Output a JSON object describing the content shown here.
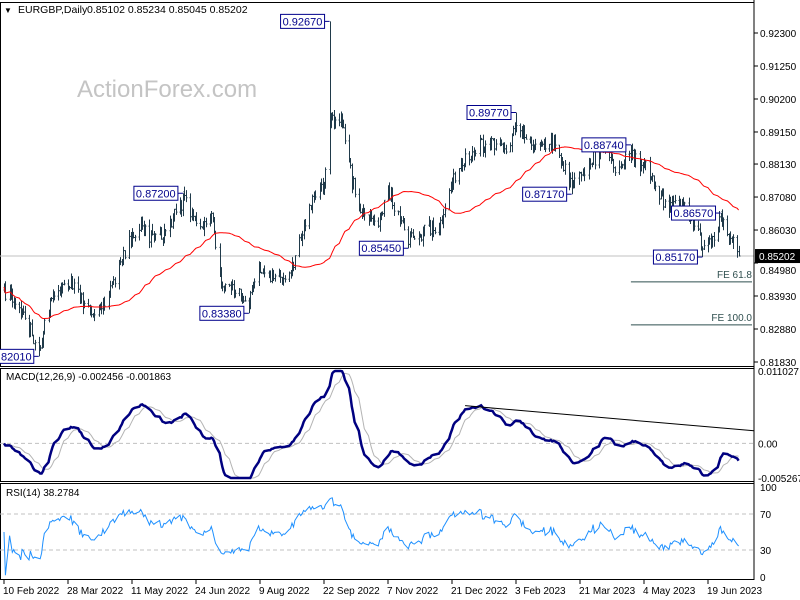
{
  "header": {
    "arrow": "▼",
    "symbol": "EURGBP,Daily",
    "ohlc": "0.85102 0.85234 0.85045 0.85202"
  },
  "watermark": "ActionForex.com",
  "colors": {
    "bars": "#203a4a",
    "moving_average": "#ff0000",
    "annotation": "#00008b",
    "macd": "#000080",
    "signal": "#b4b4b4",
    "rsi": "#1e90ff",
    "level_line": "#c0c0c0",
    "fe_line": "#2f4f4f"
  },
  "x_ticks": [
    {
      "label": "10 Feb 2022",
      "date": "2022-02-10"
    },
    {
      "label": "28 Mar 2022",
      "date": "2022-03-28"
    },
    {
      "label": "11 May 2022",
      "date": "2022-05-11"
    },
    {
      "label": "24 Jun 2022",
      "date": "2022-06-24"
    },
    {
      "label": "9 Aug 2022",
      "date": "2022-08-09"
    },
    {
      "label": "22 Sep 2022",
      "date": "2022-09-22"
    },
    {
      "label": "7 Nov 2022",
      "date": "2022-11-07"
    },
    {
      "label": "21 Dec 2022",
      "date": "2022-12-21"
    },
    {
      "label": "3 Feb 2023",
      "date": "2023-02-03"
    },
    {
      "label": "21 Mar 2023",
      "date": "2023-03-21"
    },
    {
      "label": "4 May 2023",
      "date": "2023-05-04"
    },
    {
      "label": "19 Jun 2023",
      "date": "2023-06-19"
    }
  ],
  "chart_data": [
    {
      "type": "ohlc",
      "title": "EURGBP,Daily",
      "ylim": [
        0.8183,
        0.923
      ],
      "y_ticks": [
        "0.92300",
        "0.91250",
        "0.90200",
        "0.89150",
        "0.88130",
        "0.87080",
        "0.86030",
        "0.84980",
        "0.83930",
        "0.82880",
        "0.81830"
      ],
      "current_price": "0.85202",
      "approx_closes": [
        [
          "2022-02-10",
          0.8412
        ],
        [
          "2022-02-22",
          0.8348
        ],
        [
          "2022-03-07",
          0.8225
        ],
        [
          "2022-03-15",
          0.838
        ],
        [
          "2022-03-29",
          0.8444
        ],
        [
          "2022-04-13",
          0.8332
        ],
        [
          "2022-04-27",
          0.8412
        ],
        [
          "2022-05-09",
          0.8571
        ],
        [
          "2022-05-16",
          0.8619
        ],
        [
          "2022-05-26",
          0.8571
        ],
        [
          "2022-06-06",
          0.8619
        ],
        [
          "2022-06-15",
          0.87
        ],
        [
          "2022-06-27",
          0.8603
        ],
        [
          "2022-07-05",
          0.8667
        ],
        [
          "2022-07-12",
          0.8444
        ],
        [
          "2022-08-01",
          0.8365
        ],
        [
          "2022-08-08",
          0.8476
        ],
        [
          "2022-08-17",
          0.846
        ],
        [
          "2022-08-29",
          0.8444
        ],
        [
          "2022-09-07",
          0.8603
        ],
        [
          "2022-09-15",
          0.8699
        ],
        [
          "2022-09-22",
          0.8762
        ],
        [
          "2022-09-26",
          0.895
        ],
        [
          "2022-10-05",
          0.8953
        ],
        [
          "2022-10-12",
          0.8762
        ],
        [
          "2022-10-19",
          0.8667
        ],
        [
          "2022-10-31",
          0.8635
        ],
        [
          "2022-11-07",
          0.873
        ],
        [
          "2022-11-21",
          0.8565
        ],
        [
          "2022-12-05",
          0.8603
        ],
        [
          "2022-12-15",
          0.864
        ],
        [
          "2022-12-21",
          0.8762
        ],
        [
          "2023-01-03",
          0.8858
        ],
        [
          "2023-01-17",
          0.8889
        ],
        [
          "2023-01-27",
          0.8858
        ],
        [
          "2023-02-03",
          0.894
        ],
        [
          "2023-02-10",
          0.888
        ],
        [
          "2023-02-17",
          0.8874
        ],
        [
          "2023-03-03",
          0.8874
        ],
        [
          "2023-03-15",
          0.874
        ],
        [
          "2023-03-24",
          0.8794
        ],
        [
          "2023-04-04",
          0.8858
        ],
        [
          "2023-04-14",
          0.881
        ],
        [
          "2023-04-25",
          0.885
        ],
        [
          "2023-05-09",
          0.8778
        ],
        [
          "2023-05-19",
          0.8683
        ],
        [
          "2023-05-31",
          0.8683
        ],
        [
          "2023-06-12",
          0.859
        ],
        [
          "2023-06-15",
          0.854
        ],
        [
          "2023-06-21",
          0.8571
        ],
        [
          "2023-06-28",
          0.864
        ],
        [
          "2023-07-03",
          0.859
        ],
        [
          "2023-07-11",
          0.852
        ]
      ],
      "annotations": [
        {
          "label": "0.82010",
          "value": 0.8201,
          "date": "2022-03-07",
          "kind": "low"
        },
        {
          "label": "0.87200",
          "value": 0.872,
          "date": "2022-06-15",
          "kind": "high"
        },
        {
          "label": "0.83380",
          "value": 0.8338,
          "date": "2022-08-01",
          "kind": "low"
        },
        {
          "label": "0.92670",
          "value": 0.9267,
          "date": "2022-09-26",
          "kind": "high"
        },
        {
          "label": "0.85450",
          "value": 0.8545,
          "date": "2022-11-21",
          "kind": "low"
        },
        {
          "label": "0.89770",
          "value": 0.8977,
          "date": "2023-02-03",
          "kind": "high"
        },
        {
          "label": "0.87170",
          "value": 0.8717,
          "date": "2023-03-15",
          "kind": "low"
        },
        {
          "label": "0.88740",
          "value": 0.8874,
          "date": "2023-04-25",
          "kind": "high"
        },
        {
          "label": "0.86570",
          "value": 0.8657,
          "date": "2023-06-28",
          "kind": "high"
        },
        {
          "label": "0.85170",
          "value": 0.8517,
          "date": "2023-06-15",
          "kind": "low"
        }
      ],
      "fib_levels": [
        {
          "label": "FE 61.8",
          "value": 0.8438,
          "start": "2023-04-25"
        },
        {
          "label": "FE 100.0",
          "value": 0.8301,
          "start": "2023-04-25"
        }
      ]
    },
    {
      "type": "line",
      "title": "MACD(12,26,9) -0.002456 -0.001863",
      "ylim": [
        -0.005267,
        0.011027
      ],
      "y_ticks": [
        "0.011027",
        "0.00",
        "-0.005267"
      ],
      "trendline": {
        "start": {
          "date": "2022-12-30",
          "value": 0.00575
        },
        "end": {
          "date": "2023-07-21",
          "value": 0.00192
        }
      }
    },
    {
      "type": "line",
      "title": "RSI(14) 38.2784",
      "ylim": [
        0,
        100
      ],
      "y_ticks": [
        "100",
        "70",
        "30",
        "0"
      ],
      "levels": [
        70,
        30
      ]
    }
  ]
}
